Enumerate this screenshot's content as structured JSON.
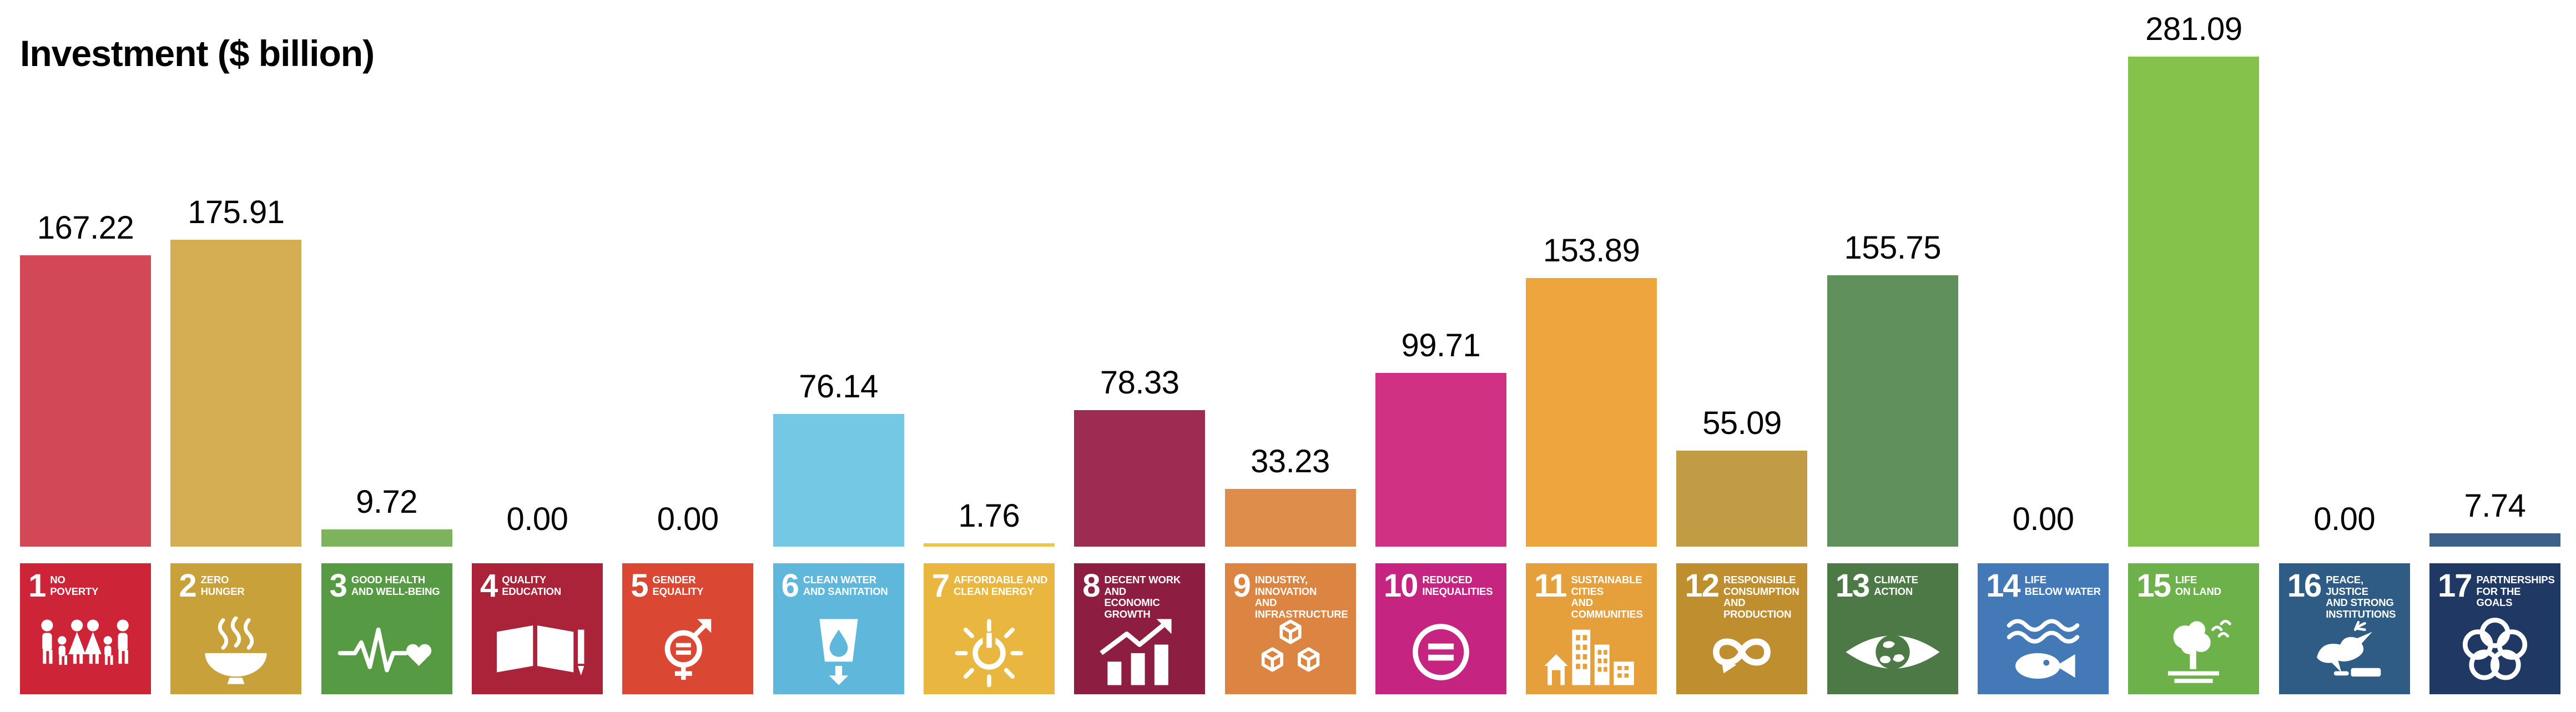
{
  "title": "Investment ($ billion)",
  "chart_data": {
    "type": "bar",
    "title": "Investment ($ billion)",
    "categories": [
      "No Poverty",
      "Zero Hunger",
      "Good Health and Well-Being",
      "Quality Education",
      "Gender Equality",
      "Clean Water and Sanitation",
      "Affordable and Clean Energy",
      "Decent Work and Economic Growth",
      "Industry, Innovation and Infrastructure",
      "Reduced Inequalities",
      "Sustainable Cities and Communities",
      "Responsible Consumption and Production",
      "Climate Action",
      "Life Below Water",
      "Life on Land",
      "Peace, Justice and Strong Institutions",
      "Partnerships for the Goals"
    ],
    "values": [
      167.22,
      175.91,
      9.72,
      0.0,
      0.0,
      76.14,
      1.76,
      78.33,
      33.23,
      99.71,
      153.89,
      55.09,
      155.75,
      0.0,
      281.09,
      0.0,
      7.74
    ],
    "value_labels": [
      "167.22",
      "175.91",
      "9.72",
      "0.00",
      "0.00",
      "76.14",
      "1.76",
      "78.33",
      "33.23",
      "99.71",
      "153.89",
      "55.09",
      "155.75",
      "0.00",
      "281.09",
      "0.00",
      "7.74"
    ],
    "bar_colors": [
      "#d24857",
      "#d5ae53",
      "#7cb35c",
      "#aa2338",
      "#da4733",
      "#75c8e4",
      "#edc549",
      "#9e2c52",
      "#de8d4a",
      "#d03183",
      "#efa53d",
      "#c19c45",
      "#60905b",
      "#4379b6",
      "#85c24b",
      "#2e5c85",
      "#3d6189"
    ],
    "xlabel": "",
    "ylabel": "Investment ($ billion)",
    "ylim": [
      0,
      300
    ],
    "grid": false,
    "legend": false,
    "axes_visible": false,
    "data_labels": true
  },
  "goals": [
    {
      "number": "1",
      "name": "NO\nPOVERTY",
      "value": 167.22,
      "value_label": "167.22",
      "bar_color": "#d24857",
      "tile_color": "#ce2438",
      "icon": "people-icon"
    },
    {
      "number": "2",
      "name": "ZERO\nHUNGER",
      "value": 175.91,
      "value_label": "175.91",
      "bar_color": "#d5ae53",
      "tile_color": "#c9a13b",
      "icon": "bowl-icon"
    },
    {
      "number": "3",
      "name": "GOOD HEALTH\nAND WELL-BEING",
      "value": 9.72,
      "value_label": "9.72",
      "bar_color": "#7cb35c",
      "tile_color": "#579a44",
      "icon": "heartbeat-icon"
    },
    {
      "number": "4",
      "name": "QUALITY\nEDUCATION",
      "value": 0.0,
      "value_label": "0.00",
      "bar_color": null,
      "tile_color": "#aa2338",
      "icon": "book-icon"
    },
    {
      "number": "5",
      "name": "GENDER\nEQUALITY",
      "value": 0.0,
      "value_label": "0.00",
      "bar_color": null,
      "tile_color": "#da4733",
      "icon": "gender-equality-icon"
    },
    {
      "number": "6",
      "name": "CLEAN WATER\nAND SANITATION",
      "value": 76.14,
      "value_label": "76.14",
      "bar_color": "#75c8e4",
      "tile_color": "#60b7dc",
      "icon": "water-glass-icon"
    },
    {
      "number": "7",
      "name": "AFFORDABLE AND\nCLEAN ENERGY",
      "value": 1.76,
      "value_label": "1.76",
      "bar_color": "#edc549",
      "tile_color": "#e9b63f",
      "icon": "sun-power-icon"
    },
    {
      "number": "8",
      "name": "DECENT WORK AND\nECONOMIC GROWTH",
      "value": 78.33,
      "value_label": "78.33",
      "bar_color": "#9e2c52",
      "tile_color": "#8d1d41",
      "icon": "growth-chart-icon"
    },
    {
      "number": "9",
      "name": "INDUSTRY, INNOVATION\nAND INFRASTRUCTURE",
      "value": 33.23,
      "value_label": "33.23",
      "bar_color": "#de8d4a",
      "tile_color": "#dc8441",
      "icon": "cubes-icon"
    },
    {
      "number": "10",
      "name": "REDUCED\nINEQUALITIES",
      "value": 99.71,
      "value_label": "99.71",
      "bar_color": "#d03183",
      "tile_color": "#c62481",
      "icon": "equality-icon"
    },
    {
      "number": "11",
      "name": "SUSTAINABLE CITIES\nAND COMMUNITIES",
      "value": 153.89,
      "value_label": "153.89",
      "bar_color": "#efa53d",
      "tile_color": "#e6a03b",
      "icon": "city-icon"
    },
    {
      "number": "12",
      "name": "RESPONSIBLE\nCONSUMPTION\nAND PRODUCTION",
      "value": 55.09,
      "value_label": "55.09",
      "bar_color": "#c19c45",
      "tile_color": "#bf8e2e",
      "icon": "infinity-icon"
    },
    {
      "number": "13",
      "name": "CLIMATE\nACTION",
      "value": 155.75,
      "value_label": "155.75",
      "bar_color": "#60905b",
      "tile_color": "#4d7946",
      "icon": "eye-globe-icon"
    },
    {
      "number": "14",
      "name": "LIFE\nBELOW WATER",
      "value": 0.0,
      "value_label": "0.00",
      "bar_color": null,
      "tile_color": "#4379b6",
      "icon": "fish-icon"
    },
    {
      "number": "15",
      "name": "LIFE\nON LAND",
      "value": 281.09,
      "value_label": "281.09",
      "bar_color": "#85c24b",
      "tile_color": "#6db14b",
      "icon": "tree-icon"
    },
    {
      "number": "16",
      "name": "PEACE, JUSTICE\nAND STRONG\nINSTITUTIONS",
      "value": 0.0,
      "value_label": "0.00",
      "bar_color": null,
      "tile_color": "#2e5c85",
      "icon": "dove-icon"
    },
    {
      "number": "17",
      "name": "PARTNERSHIPS\nFOR THE GOALS",
      "value": 7.74,
      "value_label": "7.74",
      "bar_color": "#3d6189",
      "tile_color": "#1f3864",
      "icon": "rings-icon"
    }
  ]
}
